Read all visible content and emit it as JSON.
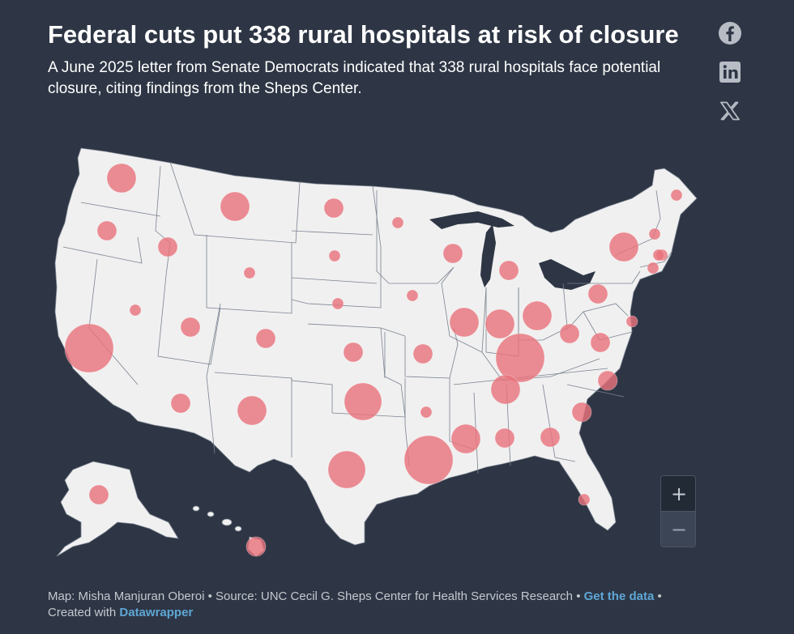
{
  "header": {
    "title": "Federal cuts put 338 rural hospitals at risk of closure",
    "subtitle": "A June 2025 letter from Senate Democrats indicated that 338 rural hospitals face potential closure, citing findings from the Sheps Center."
  },
  "share": {
    "icons": [
      "facebook-icon",
      "linkedin-icon",
      "x-icon"
    ]
  },
  "map": {
    "region": "United States",
    "symbol_color": "#e8737d",
    "land_color": "#f0f0f0",
    "border_color": "#7a8290",
    "background_color": "#2e3645",
    "bubbles": [
      {
        "state": "Washington",
        "size": 3
      },
      {
        "state": "Oregon",
        "size": 2
      },
      {
        "state": "California",
        "size": 5
      },
      {
        "state": "Idaho",
        "size": 2
      },
      {
        "state": "Nevada",
        "size": 1
      },
      {
        "state": "Montana",
        "size": 3
      },
      {
        "state": "Wyoming",
        "size": 1
      },
      {
        "state": "Utah",
        "size": 2
      },
      {
        "state": "Arizona",
        "size": 2
      },
      {
        "state": "Colorado",
        "size": 2
      },
      {
        "state": "New Mexico",
        "size": 3
      },
      {
        "state": "North Dakota",
        "size": 2
      },
      {
        "state": "South Dakota",
        "size": 1
      },
      {
        "state": "Nebraska",
        "size": 1
      },
      {
        "state": "Kansas",
        "size": 2
      },
      {
        "state": "Oklahoma",
        "size": 4
      },
      {
        "state": "Texas",
        "size": 4
      },
      {
        "state": "Minnesota",
        "size": 1
      },
      {
        "state": "Iowa",
        "size": 1
      },
      {
        "state": "Missouri",
        "size": 2
      },
      {
        "state": "Arkansas",
        "size": 1
      },
      {
        "state": "Louisiana",
        "size": 5
      },
      {
        "state": "Wisconsin",
        "size": 2
      },
      {
        "state": "Illinois",
        "size": 3
      },
      {
        "state": "Michigan",
        "size": 2
      },
      {
        "state": "Indiana",
        "size": 3
      },
      {
        "state": "Ohio",
        "size": 3
      },
      {
        "state": "Kentucky",
        "size": 5
      },
      {
        "state": "Tennessee",
        "size": 3
      },
      {
        "state": "Mississippi",
        "size": 3
      },
      {
        "state": "Alabama",
        "size": 2
      },
      {
        "state": "Georgia",
        "size": 2
      },
      {
        "state": "Florida",
        "size": 1
      },
      {
        "state": "South Carolina",
        "size": 2
      },
      {
        "state": "North Carolina",
        "size": 2
      },
      {
        "state": "Virginia",
        "size": 2
      },
      {
        "state": "West Virginia",
        "size": 2
      },
      {
        "state": "Pennsylvania",
        "size": 2
      },
      {
        "state": "New York",
        "size": 3
      },
      {
        "state": "Maryland",
        "size": 1
      },
      {
        "state": "Vermont",
        "size": 1
      },
      {
        "state": "New Hampshire",
        "size": 1
      },
      {
        "state": "Massachusetts",
        "size": 1
      },
      {
        "state": "Connecticut",
        "size": 1
      },
      {
        "state": "Maine",
        "size": 1
      },
      {
        "state": "Alaska",
        "size": 2
      },
      {
        "state": "Hawaii",
        "size": 2
      }
    ]
  },
  "zoom": {
    "in_label": "+",
    "out_label": "−"
  },
  "footer": {
    "map_credit": "Map: Misha Manjuran Oberoi",
    "separator": " • ",
    "source": "Source: UNC Cecil G. Sheps Center for Health Services Research",
    "get_data_label": "Get the data",
    "created_with": "Created with",
    "tool_name": "Datawrapper"
  }
}
